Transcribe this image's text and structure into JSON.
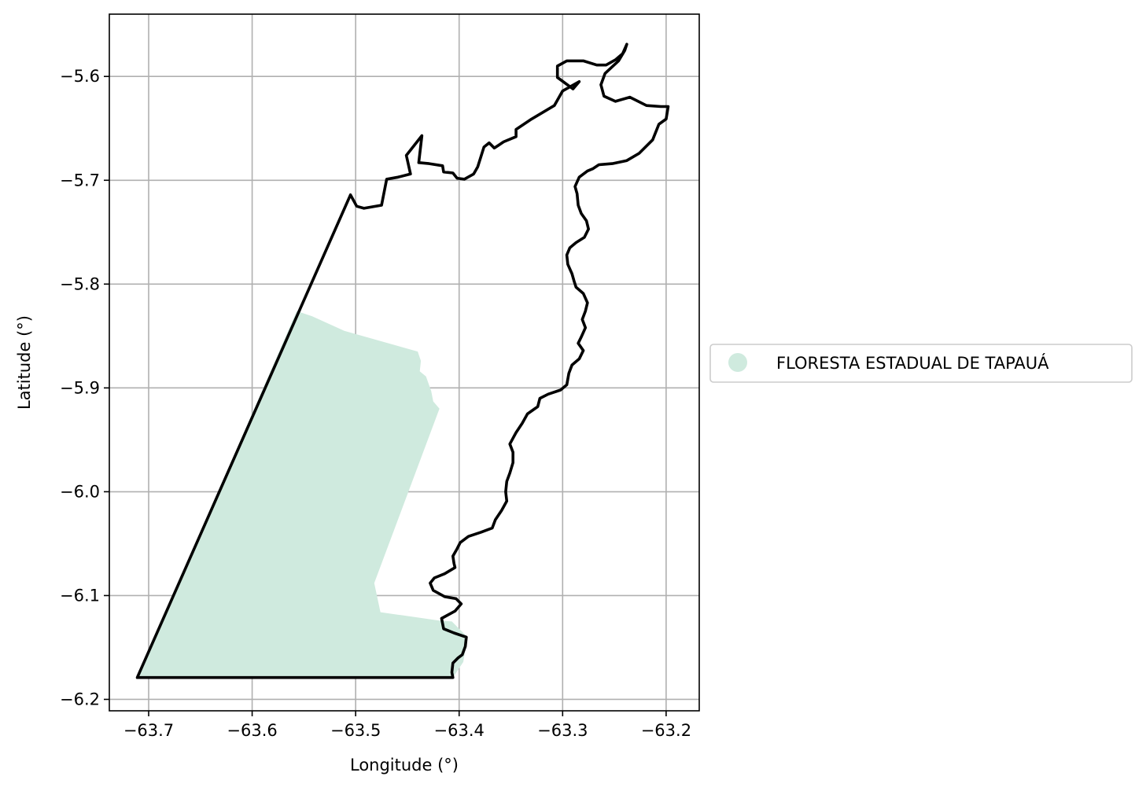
{
  "chart_data": {
    "type": "map",
    "xlabel": "Longitude (°)",
    "ylabel": "Latitude (°)",
    "xlim": [
      -63.738,
      -63.168
    ],
    "ylim": [
      -6.211,
      -5.54
    ],
    "xticks": [
      -63.7,
      -63.6,
      -63.5,
      -63.4,
      -63.3,
      -63.2
    ],
    "xtick_labels": [
      "−63.7",
      "−63.6",
      "−63.5",
      "−63.4",
      "−63.3",
      "−63.2"
    ],
    "yticks": [
      -5.6,
      -5.7,
      -5.8,
      -5.9,
      -6.0,
      -6.1,
      -6.2
    ],
    "ytick_labels": [
      "−5.6",
      "−5.7",
      "−5.8",
      "−5.9",
      "−6.0",
      "−6.1",
      "−6.2"
    ],
    "grid": true,
    "legend": {
      "placement": "right",
      "entries": [
        {
          "label": "FLORESTA ESTADUAL DE TAPAUÁ",
          "color": "#cfeade"
        }
      ]
    },
    "fill_color": "#cfeade",
    "outline_color": "#000000",
    "filled_area": [
      [
        -63.711,
        -6.179
      ],
      [
        -63.406,
        -6.179
      ],
      [
        -63.396,
        -6.164
      ],
      [
        -63.392,
        -6.14
      ],
      [
        -63.407,
        -6.125
      ],
      [
        -63.42,
        -6.124
      ],
      [
        -63.476,
        -6.116
      ],
      [
        -63.482,
        -6.088
      ],
      [
        -63.419,
        -5.92
      ],
      [
        -63.425,
        -5.913
      ],
      [
        -63.427,
        -5.903
      ],
      [
        -63.432,
        -5.889
      ],
      [
        -63.438,
        -5.884
      ],
      [
        -63.437,
        -5.874
      ],
      [
        -63.44,
        -5.865
      ],
      [
        -63.511,
        -5.845
      ],
      [
        -63.542,
        -5.831
      ],
      [
        -63.557,
        -5.826
      ],
      [
        -63.711,
        -6.179
      ]
    ],
    "outline": [
      [
        -63.711,
        -6.179
      ],
      [
        -63.505,
        -5.714
      ],
      [
        -63.499,
        -5.725
      ],
      [
        -63.492,
        -5.727
      ],
      [
        -63.475,
        -5.724
      ],
      [
        -63.47,
        -5.699
      ],
      [
        -63.459,
        -5.697
      ],
      [
        -63.447,
        -5.694
      ],
      [
        -63.451,
        -5.676
      ],
      [
        -63.436,
        -5.657
      ],
      [
        -63.439,
        -5.683
      ],
      [
        -63.429,
        -5.684
      ],
      [
        -63.416,
        -5.686
      ],
      [
        -63.415,
        -5.692
      ],
      [
        -63.406,
        -5.693
      ],
      [
        -63.402,
        -5.698
      ],
      [
        -63.395,
        -5.699
      ],
      [
        -63.386,
        -5.694
      ],
      [
        -63.382,
        -5.687
      ],
      [
        -63.376,
        -5.668
      ],
      [
        -63.371,
        -5.664
      ],
      [
        -63.366,
        -5.669
      ],
      [
        -63.357,
        -5.663
      ],
      [
        -63.345,
        -5.658
      ],
      [
        -63.345,
        -5.651
      ],
      [
        -63.33,
        -5.641
      ],
      [
        -63.308,
        -5.628
      ],
      [
        -63.3,
        -5.614
      ],
      [
        -63.284,
        -5.605
      ],
      [
        -63.29,
        -5.612
      ],
      [
        -63.305,
        -5.601
      ],
      [
        -63.305,
        -5.59
      ],
      [
        -63.296,
        -5.585
      ],
      [
        -63.28,
        -5.585
      ],
      [
        -63.267,
        -5.589
      ],
      [
        -63.258,
        -5.589
      ],
      [
        -63.249,
        -5.584
      ],
      [
        -63.242,
        -5.578
      ],
      [
        -63.238,
        -5.569
      ],
      [
        -63.24,
        -5.575
      ],
      [
        -63.246,
        -5.585
      ],
      [
        -63.259,
        -5.597
      ],
      [
        -63.263,
        -5.608
      ],
      [
        -63.26,
        -5.619
      ],
      [
        -63.249,
        -5.624
      ],
      [
        -63.235,
        -5.62
      ],
      [
        -63.219,
        -5.628
      ],
      [
        -63.205,
        -5.629
      ],
      [
        -63.198,
        -5.629
      ],
      [
        -63.2,
        -5.641
      ],
      [
        -63.207,
        -5.646
      ],
      [
        -63.213,
        -5.661
      ],
      [
        -63.226,
        -5.674
      ],
      [
        -63.238,
        -5.681
      ],
      [
        -63.252,
        -5.684
      ],
      [
        -63.265,
        -5.685
      ],
      [
        -63.271,
        -5.689
      ],
      [
        -63.276,
        -5.691
      ],
      [
        -63.284,
        -5.697
      ],
      [
        -63.288,
        -5.706
      ],
      [
        -63.286,
        -5.713
      ],
      [
        -63.285,
        -5.724
      ],
      [
        -63.282,
        -5.732
      ],
      [
        -63.277,
        -5.739
      ],
      [
        -63.275,
        -5.747
      ],
      [
        -63.279,
        -5.755
      ],
      [
        -63.287,
        -5.76
      ],
      [
        -63.293,
        -5.765
      ],
      [
        -63.296,
        -5.772
      ],
      [
        -63.295,
        -5.781
      ],
      [
        -63.291,
        -5.79
      ],
      [
        -63.289,
        -5.797
      ],
      [
        -63.287,
        -5.803
      ],
      [
        -63.28,
        -5.809
      ],
      [
        -63.276,
        -5.818
      ],
      [
        -63.278,
        -5.826
      ],
      [
        -63.281,
        -5.834
      ],
      [
        -63.278,
        -5.842
      ],
      [
        -63.282,
        -5.851
      ],
      [
        -63.285,
        -5.857
      ],
      [
        -63.28,
        -5.864
      ],
      [
        -63.284,
        -5.872
      ],
      [
        -63.291,
        -5.878
      ],
      [
        -63.294,
        -5.886
      ],
      [
        -63.296,
        -5.897
      ],
      [
        -63.302,
        -5.902
      ],
      [
        -63.314,
        -5.906
      ],
      [
        -63.322,
        -5.91
      ],
      [
        -63.324,
        -5.918
      ],
      [
        -63.334,
        -5.925
      ],
      [
        -63.339,
        -5.934
      ],
      [
        -63.345,
        -5.943
      ],
      [
        -63.351,
        -5.954
      ],
      [
        -63.348,
        -5.962
      ],
      [
        -63.348,
        -5.972
      ],
      [
        -63.351,
        -5.982
      ],
      [
        -63.354,
        -5.99
      ],
      [
        -63.355,
        -6.0
      ],
      [
        -63.354,
        -6.009
      ],
      [
        -63.359,
        -6.018
      ],
      [
        -63.365,
        -6.027
      ],
      [
        -63.368,
        -6.035
      ],
      [
        -63.379,
        -6.039
      ],
      [
        -63.391,
        -6.043
      ],
      [
        -63.399,
        -6.049
      ],
      [
        -63.402,
        -6.055
      ],
      [
        -63.406,
        -6.062
      ],
      [
        -63.405,
        -6.069
      ],
      [
        -63.404,
        -6.073
      ],
      [
        -63.414,
        -6.079
      ],
      [
        -63.424,
        -6.083
      ],
      [
        -63.428,
        -6.088
      ],
      [
        -63.425,
        -6.095
      ],
      [
        -63.414,
        -6.101
      ],
      [
        -63.403,
        -6.103
      ],
      [
        -63.398,
        -6.108
      ],
      [
        -63.404,
        -6.115
      ],
      [
        -63.417,
        -6.122
      ],
      [
        -63.415,
        -6.132
      ],
      [
        -63.405,
        -6.136
      ],
      [
        -63.393,
        -6.14
      ],
      [
        -63.394,
        -6.149
      ],
      [
        -63.397,
        -6.157
      ],
      [
        -63.401,
        -6.16
      ],
      [
        -63.406,
        -6.165
      ],
      [
        -63.407,
        -6.174
      ],
      [
        -63.406,
        -6.179
      ],
      [
        -63.711,
        -6.179
      ]
    ]
  }
}
